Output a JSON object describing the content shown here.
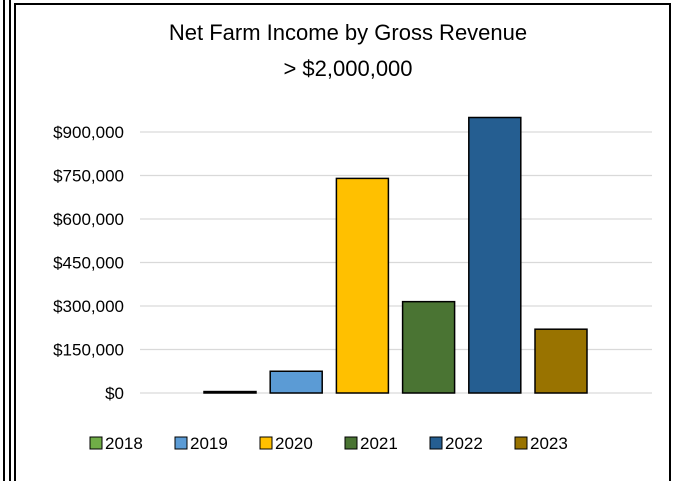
{
  "chart_data": {
    "type": "bar",
    "title_lines": [
      "Net Farm Income by Gross Revenue",
      "> $2,000,000"
    ],
    "categories": [
      "2018",
      "2019",
      "2020",
      "2021",
      "2022",
      "2023"
    ],
    "values": [
      5000,
      75000,
      740000,
      315000,
      950000,
      220000
    ],
    "colors": [
      "#70AD47",
      "#5B9BD5",
      "#FFC000",
      "#4A7433",
      "#255E91",
      "#997300"
    ],
    "ylim": [
      0,
      1000000
    ],
    "yticks": [
      0,
      150000,
      300000,
      450000,
      600000,
      750000,
      900000
    ],
    "ytick_labels": [
      "$0",
      "$150,000",
      "$300,000",
      "$450,000",
      "$600,000",
      "$750,000",
      "$900,000"
    ],
    "grid": true,
    "legend_position": "bottom"
  }
}
